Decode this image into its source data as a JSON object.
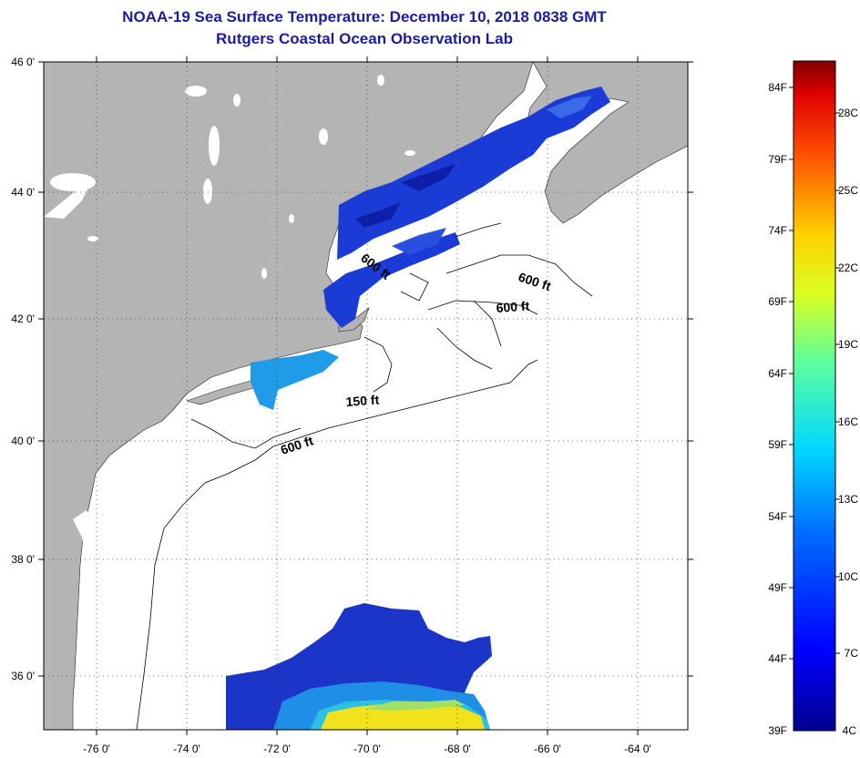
{
  "title": "NOAA-19 Sea Surface Temperature:  December 10, 2018 0838 GMT",
  "subtitle": "Rutgers Coastal Ocean Observation Lab",
  "lat_labels": [
    "46 0'",
    "44 0'",
    "42 0'",
    "40 0'",
    "38 0'",
    "36 0'"
  ],
  "lon_labels": [
    "-76 0'",
    "-74 0'",
    "-72 0'",
    "-70 0'",
    "-68 0'",
    "-66 0'",
    "-64 0'"
  ],
  "contour_labels": [
    "600 ft",
    "600 ft",
    "600 ft",
    "150 ft",
    "600 ft"
  ],
  "colorbar": {
    "f_labels": [
      "84F",
      "79F",
      "74F",
      "69F",
      "64F",
      "59F",
      "54F",
      "49F",
      "44F",
      "39F"
    ],
    "c_labels": [
      "28C",
      "25C",
      "22C",
      "19C",
      "16C",
      "13C",
      "10C",
      "7C",
      "4C"
    ]
  },
  "colors": {
    "land": "#b4b4b4",
    "water": "#ffffff",
    "title": "#1c1ca0",
    "cold": "#1b3bd6",
    "mid": "#1f9be8",
    "warm": "#f2e21e"
  }
}
